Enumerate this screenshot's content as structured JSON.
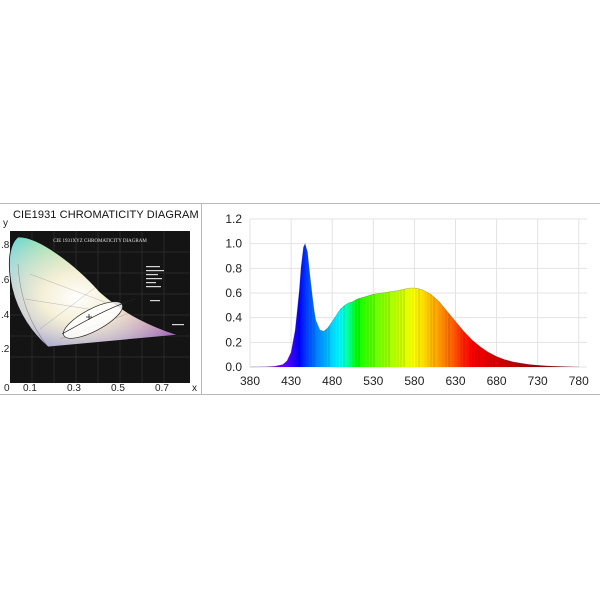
{
  "chart_data": [
    {
      "type": "image",
      "title": "CIE1931 CHROMATICITY DIAGRAM",
      "inner_caption": "CIE 1931XYZ CHROMATICITY DIAGRAM",
      "x_axis_letter": "x",
      "y_axis_letter": "y",
      "x_tick_labels": [
        "0",
        "0.1",
        "0.3",
        "0.5",
        "0.7"
      ],
      "y_tick_labels": [
        ".8",
        ".6",
        ".4",
        ".2"
      ],
      "xlim": [
        0,
        0.8
      ],
      "ylim": [
        0,
        0.9
      ]
    },
    {
      "type": "area",
      "title": "",
      "xlabel": "",
      "ylabel": "",
      "xlim": [
        380,
        790
      ],
      "ylim": [
        0,
        1.2
      ],
      "x_ticks": [
        380,
        430,
        480,
        530,
        580,
        630,
        680,
        730,
        780
      ],
      "y_ticks": [
        0.0,
        0.2,
        0.4,
        0.6,
        0.8,
        1.0,
        1.2
      ],
      "y_tick_labels": [
        "0.0",
        "0.2",
        "0.4",
        "0.6",
        "0.8",
        "1.0",
        "1.2"
      ],
      "grid": true,
      "fill": "rainbow-by-wavelength",
      "x": [
        380,
        400,
        410,
        420,
        425,
        430,
        435,
        440,
        442,
        445,
        447,
        450,
        452,
        455,
        458,
        460,
        465,
        470,
        475,
        480,
        485,
        490,
        495,
        500,
        505,
        510,
        515,
        520,
        525,
        530,
        540,
        550,
        560,
        570,
        575,
        580,
        585,
        590,
        600,
        610,
        620,
        630,
        640,
        650,
        660,
        670,
        680,
        690,
        700,
        710,
        720,
        730,
        740,
        750,
        760,
        770,
        780
      ],
      "values": [
        0,
        0.002,
        0.006,
        0.02,
        0.05,
        0.12,
        0.3,
        0.62,
        0.8,
        0.97,
        1.0,
        0.93,
        0.8,
        0.62,
        0.46,
        0.38,
        0.3,
        0.29,
        0.32,
        0.37,
        0.42,
        0.47,
        0.5,
        0.52,
        0.53,
        0.55,
        0.56,
        0.57,
        0.58,
        0.59,
        0.6,
        0.61,
        0.62,
        0.635,
        0.64,
        0.64,
        0.635,
        0.625,
        0.59,
        0.53,
        0.45,
        0.37,
        0.29,
        0.22,
        0.165,
        0.12,
        0.085,
        0.06,
        0.042,
        0.03,
        0.02,
        0.014,
        0.009,
        0.006,
        0.004,
        0.002,
        0.0
      ]
    }
  ]
}
